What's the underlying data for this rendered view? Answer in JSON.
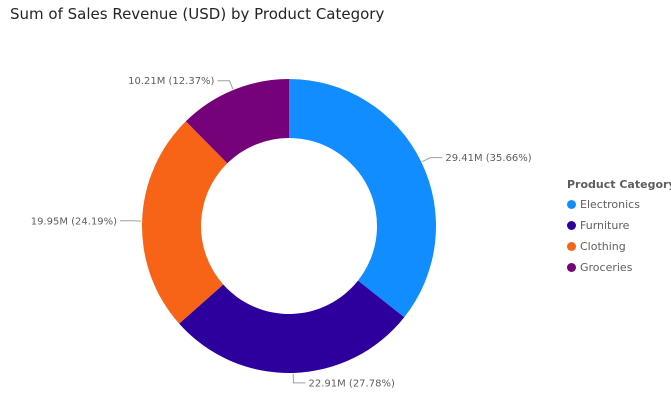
{
  "chart_data": {
    "type": "pie",
    "donut": true,
    "title": "Sum of Sales Revenue (USD) by Product Category",
    "legend": {
      "title": "Product Category",
      "position": "right"
    },
    "slices": [
      {
        "name": "Electronics",
        "value": 29.41,
        "label": "29.41M (35.66%)",
        "color": "#118dff"
      },
      {
        "name": "Furniture",
        "value": 22.91,
        "label": "22.91M (27.78%)",
        "color": "#2d009e"
      },
      {
        "name": "Clothing",
        "value": 19.95,
        "label": "19.95M (24.19%)",
        "color": "#f76317"
      },
      {
        "name": "Groceries",
        "value": 10.21,
        "label": "10.21M (12.37%)",
        "color": "#750279"
      }
    ]
  }
}
